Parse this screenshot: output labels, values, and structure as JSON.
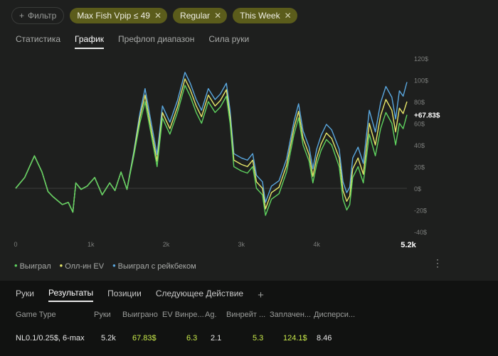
{
  "filters": {
    "add_label": "Фильтр",
    "chips": [
      "Max Fish Vpip ≤ 49",
      "Regular",
      "This Week"
    ]
  },
  "tabs": [
    "Статистика",
    "График",
    "Префлоп диапазон",
    "Сила руки"
  ],
  "active_tab": 1,
  "chart_data": {
    "type": "line",
    "x_ticks": [
      "0",
      "1k",
      "2k",
      "3k",
      "4k"
    ],
    "x_end_label": "5.2k",
    "y_ticks": [
      "120$",
      "100$",
      "80$",
      "60$",
      "40$",
      "20$",
      "0$",
      "-20$",
      "-40$"
    ],
    "ylim": [
      -40,
      120
    ],
    "xlim": [
      0,
      5200
    ],
    "current_value_label": "+67.83$",
    "series": [
      {
        "name": "Выиграл",
        "color": "#5fd35f",
        "points": [
          [
            0,
            0
          ],
          [
            120,
            10
          ],
          [
            250,
            30
          ],
          [
            350,
            15
          ],
          [
            430,
            -3
          ],
          [
            500,
            -8
          ],
          [
            620,
            -15
          ],
          [
            700,
            -13
          ],
          [
            760,
            -22
          ],
          [
            800,
            5
          ],
          [
            870,
            -1
          ],
          [
            950,
            2
          ],
          [
            1050,
            10
          ],
          [
            1150,
            -6
          ],
          [
            1250,
            5
          ],
          [
            1320,
            -2
          ],
          [
            1400,
            15
          ],
          [
            1480,
            -1
          ],
          [
            1570,
            30
          ],
          [
            1650,
            60
          ],
          [
            1720,
            80
          ],
          [
            1800,
            50
          ],
          [
            1880,
            20
          ],
          [
            1950,
            65
          ],
          [
            2050,
            50
          ],
          [
            2150,
            70
          ],
          [
            2250,
            95
          ],
          [
            2320,
            85
          ],
          [
            2400,
            70
          ],
          [
            2470,
            60
          ],
          [
            2560,
            80
          ],
          [
            2650,
            70
          ],
          [
            2720,
            75
          ],
          [
            2800,
            85
          ],
          [
            2850,
            60
          ],
          [
            2900,
            20
          ],
          [
            3000,
            16
          ],
          [
            3080,
            14
          ],
          [
            3150,
            20
          ],
          [
            3200,
            0
          ],
          [
            3280,
            -6
          ],
          [
            3320,
            -25
          ],
          [
            3400,
            -10
          ],
          [
            3500,
            -5
          ],
          [
            3600,
            15
          ],
          [
            3700,
            50
          ],
          [
            3760,
            65
          ],
          [
            3820,
            40
          ],
          [
            3900,
            25
          ],
          [
            3950,
            5
          ],
          [
            4000,
            22
          ],
          [
            4060,
            35
          ],
          [
            4130,
            45
          ],
          [
            4200,
            40
          ],
          [
            4300,
            20
          ],
          [
            4350,
            -10
          ],
          [
            4400,
            -20
          ],
          [
            4440,
            -15
          ],
          [
            4480,
            10
          ],
          [
            4550,
            20
          ],
          [
            4620,
            5
          ],
          [
            4700,
            50
          ],
          [
            4780,
            30
          ],
          [
            4850,
            55
          ],
          [
            4920,
            70
          ],
          [
            5000,
            60
          ],
          [
            5050,
            40
          ],
          [
            5100,
            60
          ],
          [
            5150,
            55
          ],
          [
            5200,
            67.83
          ]
        ]
      },
      {
        "name": "Олл-ин EV",
        "color": "#e8e86a",
        "points": [
          [
            0,
            0
          ],
          [
            120,
            10
          ],
          [
            250,
            30
          ],
          [
            350,
            15
          ],
          [
            430,
            -3
          ],
          [
            500,
            -8
          ],
          [
            620,
            -15
          ],
          [
            700,
            -13
          ],
          [
            760,
            -22
          ],
          [
            800,
            5
          ],
          [
            870,
            -1
          ],
          [
            950,
            2
          ],
          [
            1050,
            10
          ],
          [
            1150,
            -6
          ],
          [
            1250,
            5
          ],
          [
            1320,
            -2
          ],
          [
            1400,
            15
          ],
          [
            1480,
            -1
          ],
          [
            1570,
            32
          ],
          [
            1650,
            65
          ],
          [
            1720,
            86
          ],
          [
            1800,
            55
          ],
          [
            1880,
            25
          ],
          [
            1950,
            70
          ],
          [
            2050,
            55
          ],
          [
            2150,
            75
          ],
          [
            2250,
            101
          ],
          [
            2320,
            91
          ],
          [
            2400,
            76
          ],
          [
            2470,
            66
          ],
          [
            2560,
            86
          ],
          [
            2650,
            76
          ],
          [
            2720,
            81
          ],
          [
            2800,
            91
          ],
          [
            2850,
            66
          ],
          [
            2900,
            26
          ],
          [
            3000,
            22
          ],
          [
            3080,
            20
          ],
          [
            3150,
            26
          ],
          [
            3200,
            6
          ],
          [
            3280,
            0
          ],
          [
            3320,
            -19
          ],
          [
            3400,
            -4
          ],
          [
            3500,
            1
          ],
          [
            3600,
            21
          ],
          [
            3700,
            56
          ],
          [
            3760,
            71
          ],
          [
            3820,
            46
          ],
          [
            3900,
            31
          ],
          [
            3950,
            11
          ],
          [
            4000,
            28
          ],
          [
            4060,
            41
          ],
          [
            4130,
            51
          ],
          [
            4200,
            46
          ],
          [
            4300,
            28
          ],
          [
            4350,
            -2
          ],
          [
            4400,
            -12
          ],
          [
            4440,
            -7
          ],
          [
            4480,
            18
          ],
          [
            4550,
            28
          ],
          [
            4620,
            13
          ],
          [
            4700,
            60
          ],
          [
            4780,
            40
          ],
          [
            4850,
            67
          ],
          [
            4920,
            82
          ],
          [
            5000,
            72
          ],
          [
            5050,
            52
          ],
          [
            5100,
            74
          ],
          [
            5150,
            69
          ],
          [
            5200,
            80
          ]
        ]
      },
      {
        "name": "Выиграл с рейкбеком",
        "color": "#5aa8e0",
        "points": [
          [
            0,
            0
          ],
          [
            120,
            10
          ],
          [
            250,
            30
          ],
          [
            350,
            15
          ],
          [
            430,
            -3
          ],
          [
            500,
            -8
          ],
          [
            620,
            -15
          ],
          [
            700,
            -13
          ],
          [
            760,
            -22
          ],
          [
            800,
            5
          ],
          [
            870,
            -1
          ],
          [
            950,
            2
          ],
          [
            1050,
            10
          ],
          [
            1150,
            -6
          ],
          [
            1250,
            5
          ],
          [
            1320,
            -2
          ],
          [
            1400,
            15
          ],
          [
            1480,
            -1
          ],
          [
            1570,
            34
          ],
          [
            1650,
            69
          ],
          [
            1720,
            92
          ],
          [
            1800,
            61
          ],
          [
            1880,
            31
          ],
          [
            1950,
            76
          ],
          [
            2050,
            61
          ],
          [
            2150,
            81
          ],
          [
            2250,
            107
          ],
          [
            2320,
            97
          ],
          [
            2400,
            82
          ],
          [
            2470,
            72
          ],
          [
            2560,
            92
          ],
          [
            2650,
            82
          ],
          [
            2720,
            87
          ],
          [
            2800,
            97
          ],
          [
            2850,
            72
          ],
          [
            2900,
            32
          ],
          [
            3000,
            28
          ],
          [
            3080,
            26
          ],
          [
            3150,
            32
          ],
          [
            3200,
            12
          ],
          [
            3280,
            6
          ],
          [
            3320,
            -13
          ],
          [
            3400,
            2
          ],
          [
            3500,
            7
          ],
          [
            3600,
            27
          ],
          [
            3700,
            62
          ],
          [
            3760,
            78
          ],
          [
            3820,
            53
          ],
          [
            3900,
            38
          ],
          [
            3950,
            18
          ],
          [
            4000,
            36
          ],
          [
            4060,
            49
          ],
          [
            4130,
            59
          ],
          [
            4200,
            54
          ],
          [
            4300,
            36
          ],
          [
            4350,
            6
          ],
          [
            4400,
            -4
          ],
          [
            4440,
            1
          ],
          [
            4480,
            28
          ],
          [
            4550,
            38
          ],
          [
            4620,
            23
          ],
          [
            4700,
            72
          ],
          [
            4780,
            52
          ],
          [
            4850,
            79
          ],
          [
            4920,
            94
          ],
          [
            5000,
            84
          ],
          [
            5050,
            64
          ],
          [
            5100,
            90
          ],
          [
            5150,
            85
          ],
          [
            5200,
            98
          ]
        ]
      }
    ]
  },
  "legend": [
    "Выиграл",
    "Олл-ин EV",
    "Выиграл с рейкбеком"
  ],
  "bottom_tabs": [
    "Руки",
    "Результаты",
    "Позиции",
    "Следующее Действие"
  ],
  "active_bottom_tab": 1,
  "table": {
    "headers": [
      "Game Type",
      "Руки",
      "Выиграно",
      "EV Винре...",
      "Ag.",
      "Винрейт ...",
      "Заплачен...",
      "Дисперси..."
    ],
    "row": [
      "NL0.1/0.25$, 6-max",
      "5.2k",
      "67.83$",
      "6.3",
      "2.1",
      "5.3",
      "124.1$",
      "8.46"
    ]
  }
}
